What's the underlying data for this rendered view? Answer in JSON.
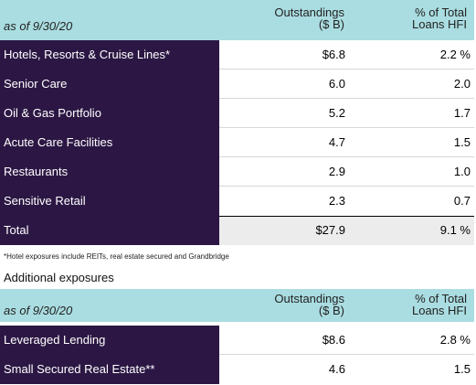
{
  "table1": {
    "as_of": "as of 9/30/20",
    "col1_line1": "Outstandings",
    "col1_line2": "($ B)",
    "col2_line1": "% of Total",
    "col2_line2": "Loans HFI",
    "rows": [
      {
        "label": "Hotels, Resorts & Cruise Lines*",
        "outstandings": "$6.8",
        "pct": "2.2 %"
      },
      {
        "label": "Senior Care",
        "outstandings": "6.0",
        "pct": "2.0"
      },
      {
        "label": "Oil & Gas Portfolio",
        "outstandings": "5.2",
        "pct": "1.7"
      },
      {
        "label": "Acute Care Facilities",
        "outstandings": "4.7",
        "pct": "1.5"
      },
      {
        "label": "Restaurants",
        "outstandings": "2.9",
        "pct": "1.0"
      },
      {
        "label": "Sensitive Retail",
        "outstandings": "2.3",
        "pct": "0.7"
      }
    ],
    "total": {
      "label": "Total",
      "outstandings": "$27.9",
      "pct": "9.1 %"
    }
  },
  "footnote": "*Hotel exposures include REITs, real estate secured and Grandbridge",
  "subheading": "Additional exposures",
  "table2": {
    "as_of": "as of 9/30/20",
    "col1_line1": "Outstandings",
    "col1_line2": "($ B)",
    "col2_line1": "% of Total",
    "col2_line2": "Loans HFI",
    "rows": [
      {
        "label": "Leveraged Lending",
        "outstandings": "$8.6",
        "pct": "2.8 %"
      },
      {
        "label": "Small Secured Real Estate**",
        "outstandings": "4.6",
        "pct": "1.5"
      }
    ]
  },
  "colors": {
    "header_bg": "#aadde1",
    "label_bg": "#2c1744",
    "total_bg": "#ececec"
  }
}
